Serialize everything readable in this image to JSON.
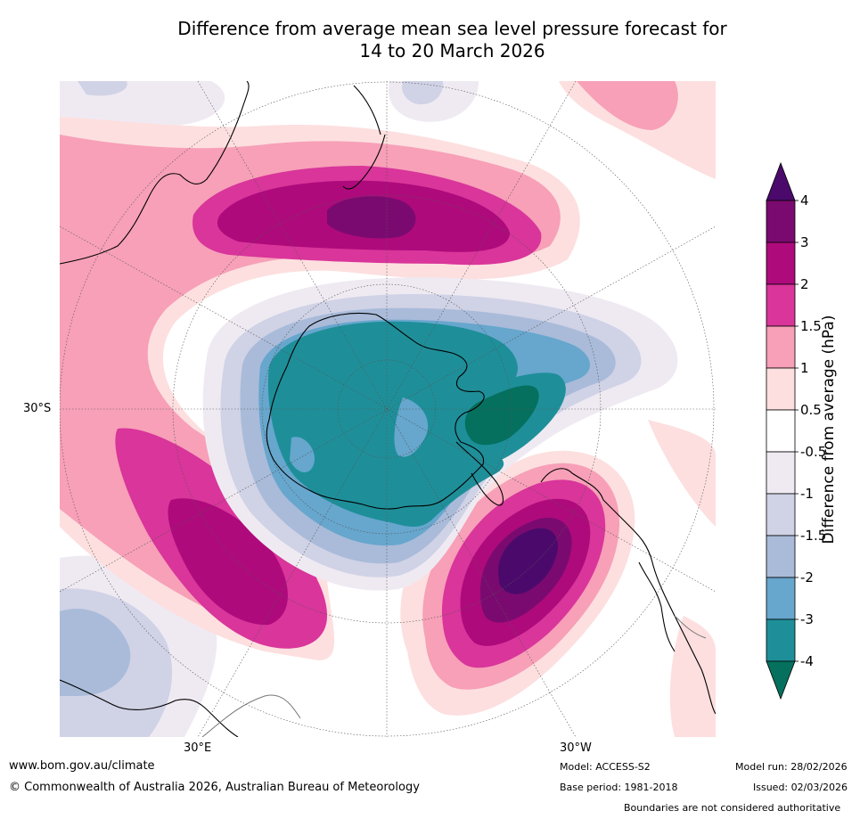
{
  "title": {
    "line1": "Difference from average mean sea level pressure forecast for",
    "line2": "14 to 20 March 2026"
  },
  "map": {
    "projection": "south polar stereographic",
    "lat_label": "30°S",
    "lon_labels": [
      "30°E",
      "30°W"
    ]
  },
  "colorbar": {
    "title": "Difference from average (hPa)",
    "tick_labels": [
      "4",
      "3",
      "2",
      "1.5",
      "1",
      "0.5",
      "-0.5",
      "-1",
      "-1.5",
      "-2",
      "-3",
      "-4"
    ],
    "bands": [
      {
        "range": "> 4",
        "color": "#4b0a6b"
      },
      {
        "range": "3 to 4",
        "color": "#7b0a70"
      },
      {
        "range": "2 to 3",
        "color": "#ae0a7c"
      },
      {
        "range": "1.5 to 2",
        "color": "#d9359a"
      },
      {
        "range": "1 to 1.5",
        "color": "#f7a0b8"
      },
      {
        "range": "0.5 to 1",
        "color": "#fddfdf"
      },
      {
        "range": "-0.5 to 0.5",
        "color": "#ffffff"
      },
      {
        "range": "-1 to -0.5",
        "color": "#efeaf2"
      },
      {
        "range": "-1.5 to -1",
        "color": "#d0d2e6"
      },
      {
        "range": "-2 to -1.5",
        "color": "#a9bbd9"
      },
      {
        "range": "-3 to -2",
        "color": "#67a6cd"
      },
      {
        "range": "-4 to -3",
        "color": "#1e8f99"
      },
      {
        "range": "< -4",
        "color": "#05705e"
      }
    ]
  },
  "footer": {
    "website": "www.bom.gov.au/climate",
    "copyright": "© Commonwealth of Australia 2026, Australian Bureau of Meteorology",
    "model": "Model: ACCESS-S2",
    "base_period": "Base period: 1981-2018",
    "model_run": "Model run: 28/02/2026",
    "issued": "Issued: 02/03/2026",
    "disclaimer": "Boundaries are not considered authoritative"
  }
}
